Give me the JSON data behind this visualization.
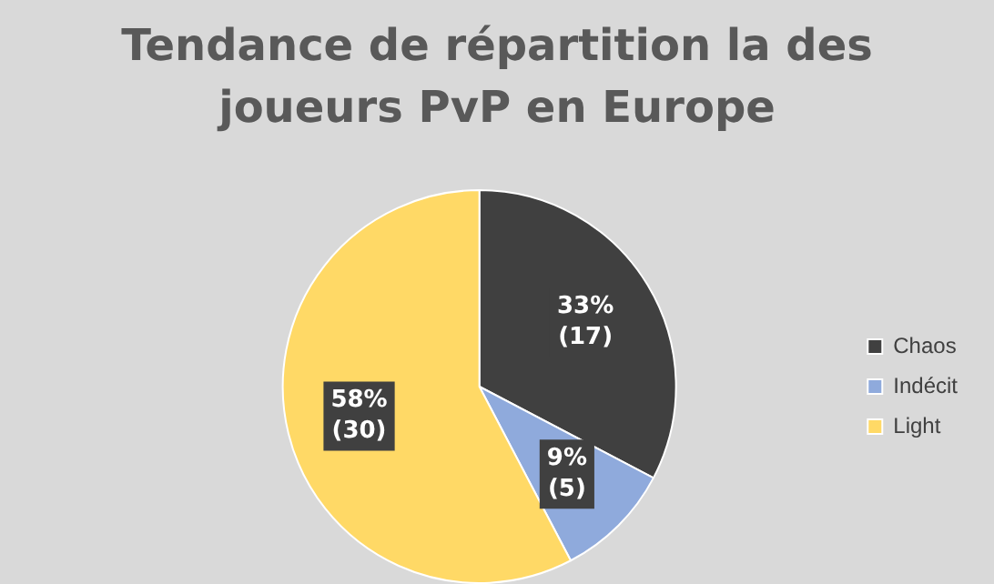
{
  "chart_data": {
    "type": "pie",
    "title": "Tendance de répartition la des joueurs PvP en Europe",
    "categories": [
      "Chaos",
      "Indécit",
      "Light"
    ],
    "values": [
      17,
      5,
      30
    ],
    "colors": [
      "#404040",
      "#8faadc",
      "#ffd966"
    ],
    "value_labels": [
      "33% (17)",
      "9% (5)",
      "58% (30)"
    ],
    "legend": "right"
  }
}
